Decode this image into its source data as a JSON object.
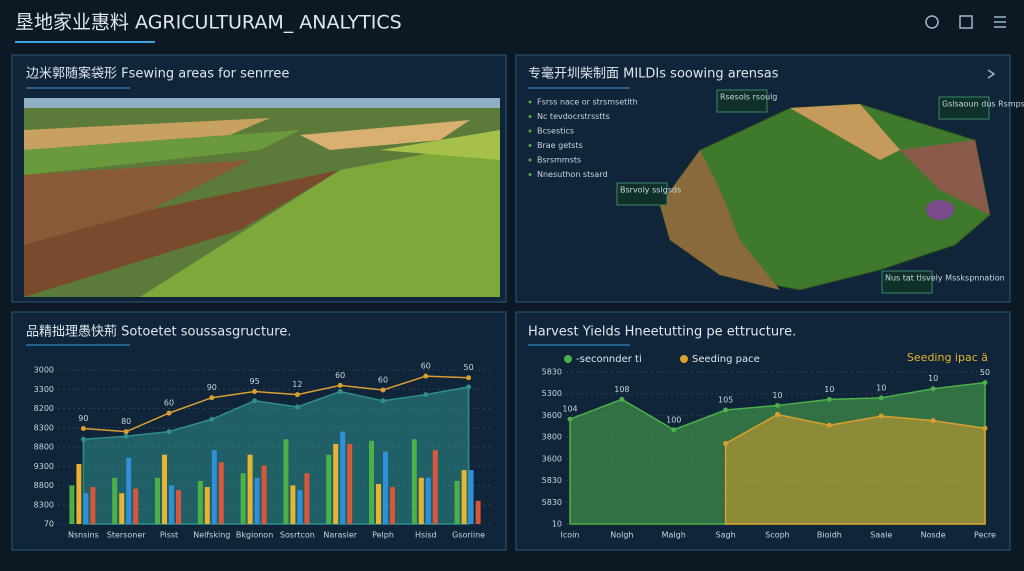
{
  "header": {
    "title": "垦地家业惠料 AGRICULTURAM_ ANALYTICS"
  },
  "panels": [
    {
      "title": "边米郭随案袋形 Fsewing areas for senrree"
    },
    {
      "title": "专毫开圳柴制面 MILDIs soowing arensas",
      "legend": [
        "Fsrss nace or strsmsetlth",
        "Nc tevdocrstrsstts",
        "Bcsestics",
        "Brae getsts",
        "Bsrsmmsts",
        "Nnesuthon stsard"
      ],
      "map_labels": [
        "Rsesols rsoulg",
        "Gslsaoun dus Rsmpsles",
        "Bsrvoly sslgsds",
        "Nus tat tlsvely Msskspnnation"
      ]
    },
    {
      "title": "品精拙理愚快荊 Sotoetet soussasgructure."
    },
    {
      "title": "Harvest Yields Hneetutting pe ettructure."
    }
  ],
  "chart_data": [
    {
      "type": "bar",
      "y_labels": [
        "3000",
        "3300",
        "8200",
        "8300",
        "8800",
        "9300",
        "8800",
        "8300",
        "70"
      ],
      "categories": [
        "Nsnsins",
        "Stersoner",
        "Pisst",
        "Nelfsking",
        "Bkgionon",
        "Sosrtcon",
        "Narasler",
        "Pelph",
        "Hsisd",
        "Gsoriine"
      ],
      "ylim": [
        0,
        100
      ],
      "series": [
        {
          "type": "area",
          "color": "#2f8f8a",
          "values": [
            55,
            57,
            60,
            68,
            80,
            76,
            86,
            80,
            84,
            89
          ]
        },
        {
          "type": "bar",
          "color": "#4cb04a",
          "values": [
            25,
            30,
            30,
            28,
            33,
            55,
            45,
            54,
            55,
            28
          ]
        },
        {
          "type": "bar",
          "color": "#e8b430",
          "values": [
            39,
            20,
            45,
            24,
            45,
            25,
            52,
            26,
            30,
            35
          ]
        },
        {
          "type": "bar",
          "color": "#2f8fd8",
          "values": [
            20,
            43,
            25,
            48,
            30,
            22,
            60,
            47,
            30,
            35
          ]
        },
        {
          "type": "bar",
          "color": "#d8573a",
          "values": [
            24,
            23,
            22,
            40,
            38,
            33,
            52,
            24,
            48,
            15
          ]
        },
        {
          "type": "line",
          "color": "#d9a030",
          "values": [
            62,
            60,
            72,
            82,
            86,
            84,
            90,
            87,
            96,
            95
          ]
        }
      ],
      "annotations": [
        "90",
        "80",
        "60",
        "90",
        "95",
        "12",
        "60",
        "60",
        "60",
        "50"
      ]
    },
    {
      "type": "area",
      "y_labels": [
        "5830",
        "5300",
        "3600",
        "3800",
        "3600",
        "5830",
        "5830",
        "10"
      ],
      "categories": [
        "Icoin",
        "Nolgh",
        "Malgh",
        "Sagh",
        "Scoph",
        "Bioidh",
        "Saale",
        "Nosde",
        "Pecre"
      ],
      "ylim": [
        0,
        100
      ],
      "series": [
        {
          "name": "-seconnder ti",
          "color": "#4cb04a",
          "values": [
            69,
            82,
            62,
            75,
            78,
            82,
            83,
            89,
            93
          ]
        },
        {
          "name": "Seeding pace",
          "color": "#d9a030",
          "values": [
            null,
            null,
            null,
            53,
            72,
            65,
            71,
            68,
            63
          ]
        }
      ],
      "annotations": [
        "104",
        "108",
        "100",
        "105",
        "10",
        "10",
        "10",
        "10",
        "50"
      ],
      "note": "Seeding ipac ä"
    }
  ]
}
